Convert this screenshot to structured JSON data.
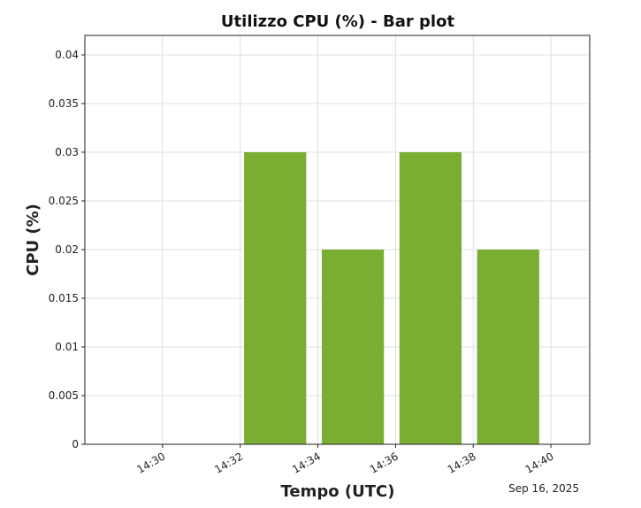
{
  "chart_data": {
    "type": "bar",
    "title": "Utilizzo CPU (%) - Bar plot",
    "xlabel": "Tempo (UTC)",
    "ylabel": "CPU (%)",
    "date_label": "Sep 16, 2025",
    "x_axis": {
      "type": "time",
      "range": [
        "14:28",
        "14:41"
      ],
      "tick_labels": [
        "14:30",
        "14:32",
        "14:34",
        "14:36",
        "14:38",
        "14:40"
      ]
    },
    "y_axis": {
      "ylim": [
        0,
        0.042
      ],
      "tick_values": [
        0,
        0.005,
        0.01,
        0.015,
        0.02,
        0.025,
        0.03,
        0.035,
        0.04
      ],
      "tick_labels": [
        "0",
        "0.005",
        "0.01",
        "0.015",
        "0.02",
        "0.025",
        "0.03",
        "0.035",
        "0.04"
      ]
    },
    "categories": [
      "14:32",
      "14:34",
      "14:36",
      "14:38"
    ],
    "values": [
      0.03,
      0.02,
      0.03,
      0.02
    ],
    "grid": true,
    "colors": {
      "bar": "#7aae32",
      "grid": "#d9d9d9",
      "axes": "#222222"
    }
  }
}
